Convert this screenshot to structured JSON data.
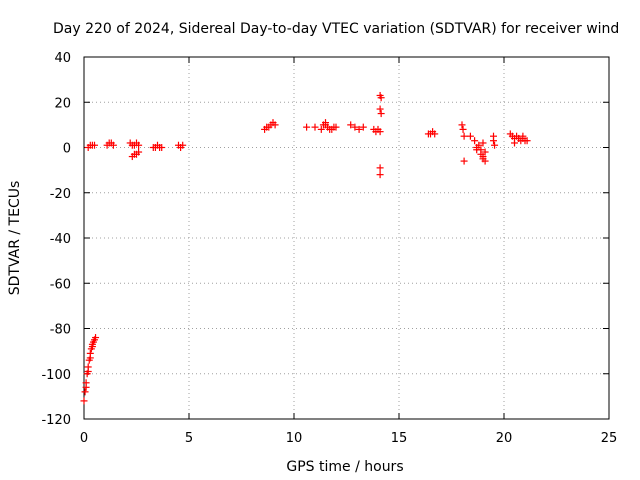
{
  "chart_data": {
    "type": "scatter",
    "title": "Day 220 of 2024, Sidereal Day-to-day VTEC variation (SDTVAR) for receiver wind",
    "xlabel": "GPS time / hours",
    "ylabel": "SDTVAR / TECUs",
    "xlim": [
      0,
      25
    ],
    "ylim": [
      -120,
      40
    ],
    "xticks": [
      0,
      5,
      10,
      15,
      20,
      25
    ],
    "yticks": [
      -120,
      -100,
      -80,
      -60,
      -40,
      -20,
      0,
      20,
      40
    ],
    "xtick_labels": [
      "0",
      "5",
      "10",
      "15",
      "20",
      "25"
    ],
    "ytick_labels": [
      "-120",
      "-100",
      "-80",
      "-60",
      "-40",
      "-20",
      "0",
      "20",
      "40"
    ],
    "grid": true,
    "marker": "plus",
    "color": "#ff0000",
    "series": [
      {
        "name": "SDTVAR",
        "x": [
          0.0,
          0.05,
          0.1,
          0.15,
          0.2,
          0.25,
          0.3,
          0.35,
          0.4,
          0.45,
          0.5,
          0.55,
          0.1,
          0.2,
          0.3,
          0.4,
          0.2,
          0.3,
          0.4,
          0.5,
          1.1,
          1.2,
          1.3,
          1.4,
          2.2,
          2.3,
          2.4,
          2.5,
          2.6,
          2.3,
          2.4,
          2.5,
          2.6,
          3.3,
          3.4,
          3.5,
          3.6,
          3.7,
          4.5,
          4.6,
          4.7,
          8.6,
          8.7,
          8.8,
          8.9,
          9.0,
          9.1,
          10.6,
          11.0,
          11.3,
          11.5,
          11.6,
          11.8,
          12.0,
          11.4,
          11.7,
          11.9,
          11.5,
          12.7,
          12.9,
          13.1,
          13.3,
          13.8,
          13.9,
          14.0,
          14.1,
          14.1,
          14.15,
          14.1,
          14.15,
          14.1,
          14.1,
          16.4,
          16.5,
          16.6,
          16.7,
          18.0,
          18.05,
          18.1,
          18.1,
          18.4,
          18.6,
          18.8,
          18.9,
          19.0,
          19.1,
          18.7,
          18.9,
          19.0,
          19.1,
          18.7,
          19.0,
          19.5,
          19.55,
          19.5,
          20.3,
          20.4,
          20.5,
          20.6,
          20.7,
          20.8,
          20.9,
          21.0,
          21.1,
          20.5,
          20.7,
          20.9
        ],
        "y": [
          -112,
          -108,
          -104,
          -100,
          -97,
          -94,
          -91,
          -89,
          -87,
          -86,
          -85,
          -84,
          -106,
          -99,
          -93,
          -88,
          0,
          1,
          1,
          1,
          1,
          2,
          2,
          1,
          2,
          1,
          1,
          2,
          1,
          -4,
          -3,
          -3,
          -2,
          0,
          0,
          1,
          0,
          0,
          1,
          0,
          1,
          8,
          9,
          9,
          10,
          11,
          10,
          9,
          9,
          8,
          10,
          9,
          8,
          9,
          10,
          8,
          9,
          11,
          10,
          9,
          8,
          9,
          8,
          7,
          8,
          7,
          23,
          22,
          17,
          15,
          -9,
          -12,
          6,
          6,
          7,
          6,
          10,
          8,
          5,
          -6,
          5,
          3,
          1,
          -1,
          -4,
          -6,
          -1,
          -3,
          -5,
          -2,
          0,
          2,
          5,
          1,
          3,
          6,
          5,
          4,
          5,
          4,
          3,
          4,
          3,
          3,
          2,
          4,
          5
        ]
      }
    ]
  }
}
